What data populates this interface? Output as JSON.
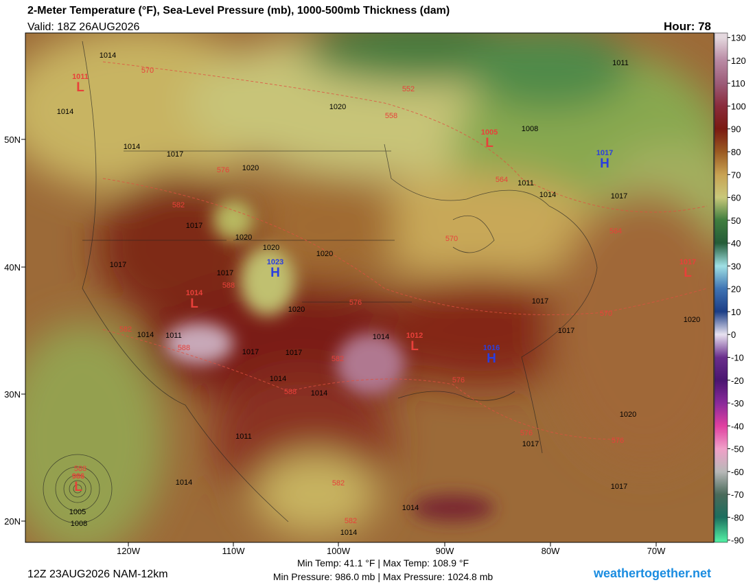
{
  "header": {
    "title": "2-Meter Temperature (°F), Sea-Level Pressure (mb), 1000-500mb Thickness (dam)",
    "valid": "Valid: 18Z 26AUG2026",
    "hour": "Hour: 78"
  },
  "map": {
    "latitudes": [
      "50N",
      "40N",
      "30N",
      "20N"
    ],
    "longitudes": [
      "120W",
      "110W",
      "100W",
      "90W",
      "80W",
      "70W"
    ],
    "centers": [
      {
        "letter": "L",
        "value": "1011"
      },
      {
        "letter": "L",
        "value": "1005"
      },
      {
        "letter": "H",
        "value": "1017"
      },
      {
        "letter": "H",
        "value": "1023"
      },
      {
        "letter": "L",
        "value": "1014"
      },
      {
        "letter": "L",
        "value": "1012"
      },
      {
        "letter": "H",
        "value": "1016"
      },
      {
        "letter": "L",
        "value": "1017"
      },
      {
        "letter": "L",
        "value": "986"
      }
    ],
    "isobar_labels": [
      "1014",
      "1014",
      "1014",
      "1017",
      "1020",
      "1017",
      "1020",
      "1020",
      "1020",
      "1017",
      "1017",
      "1020",
      "1014",
      "1011",
      "1017",
      "1017",
      "1014",
      "1014",
      "1014",
      "1011",
      "1014",
      "1005",
      "1008",
      "1014",
      "1014",
      "1020",
      "1008",
      "1011",
      "1011",
      "1014",
      "1017",
      "1017",
      "1017",
      "1020",
      "1020",
      "1017",
      "1017"
    ],
    "thickness_labels": [
      "570",
      "552",
      "558",
      "576",
      "582",
      "588",
      "582",
      "588",
      "576",
      "582",
      "588",
      "576",
      "576",
      "576",
      "570",
      "564",
      "564",
      "570",
      "588",
      "582",
      "582"
    ]
  },
  "colorbar": {
    "range": [
      -91,
      132
    ],
    "ticks": [
      130,
      120,
      110,
      100,
      90,
      80,
      70,
      60,
      50,
      40,
      30,
      20,
      10,
      0,
      -10,
      -20,
      -30,
      -40,
      -50,
      -60,
      -70,
      -80,
      -90
    ],
    "colors": [
      "#e4d8de",
      "#b98aa4",
      "#9c5c78",
      "#8a2c3c",
      "#7a1a12",
      "#9a5a22",
      "#c8a252",
      "#c9c87a",
      "#3f7d3e",
      "#255c38",
      "#9fe0e4",
      "#3f73b3",
      "#1c3e86",
      "#e8e2f0",
      "#6a2f8c",
      "#4a1570",
      "#8a2a9a",
      "#e040a0",
      "#f0a0c8",
      "#b8b8b8",
      "#4a6a5a",
      "#1c6e5e",
      "#50e8a0"
    ]
  },
  "footer": {
    "run": "12Z 23AUG2026 NAM-12km",
    "temps": "Min Temp:  41.1 °F | Max Temp: 108.9 °F",
    "pressures": "Min Pressure: 986.0 mb | Max Pressure: 1024.8 mb",
    "site": "weathertogether.net"
  }
}
